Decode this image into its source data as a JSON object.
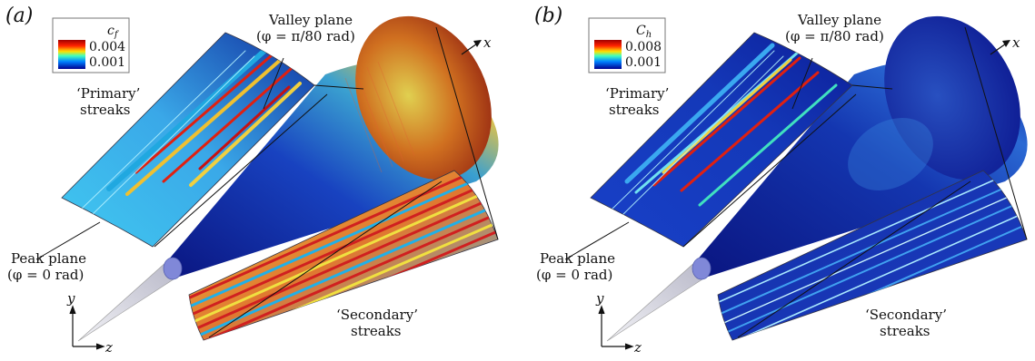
{
  "panels": [
    {
      "id": "a",
      "letter": "(a)",
      "legend": {
        "title": "c",
        "title_sub": "f",
        "max": "0.004",
        "min": "0.001"
      },
      "valley_label": "Valley plane",
      "valley_eq": "(φ = π/80 rad)",
      "primary_label_1": "‘Primary’",
      "primary_label_2": "streaks",
      "peak_label": "Peak plane",
      "peak_eq": "(φ = 0 rad)",
      "secondary_label_1": "‘Secondary’",
      "secondary_label_2": "streaks",
      "axis_x": "x",
      "axis_y": "y",
      "axis_z": "z",
      "colormap": "jet",
      "cone_tip_color": "#c8c8d8",
      "cone_base_color": "#12198f"
    },
    {
      "id": "b",
      "letter": "(b)",
      "legend": {
        "title": "C",
        "title_sub": "h",
        "max": "0.008",
        "min": "0.001"
      },
      "valley_label": "Valley plane",
      "valley_eq": "(φ = π/80 rad)",
      "primary_label_1": "‘Primary’",
      "primary_label_2": "streaks",
      "peak_label": "Peak plane",
      "peak_eq": "(φ = 0 rad)",
      "secondary_label_1": "‘Secondary’",
      "secondary_label_2": "streaks",
      "axis_x": "x",
      "axis_y": "y",
      "axis_z": "z",
      "colormap": "jet",
      "cone_tip_color": "#c8c8d8",
      "cone_base_color": "#12198f"
    }
  ]
}
